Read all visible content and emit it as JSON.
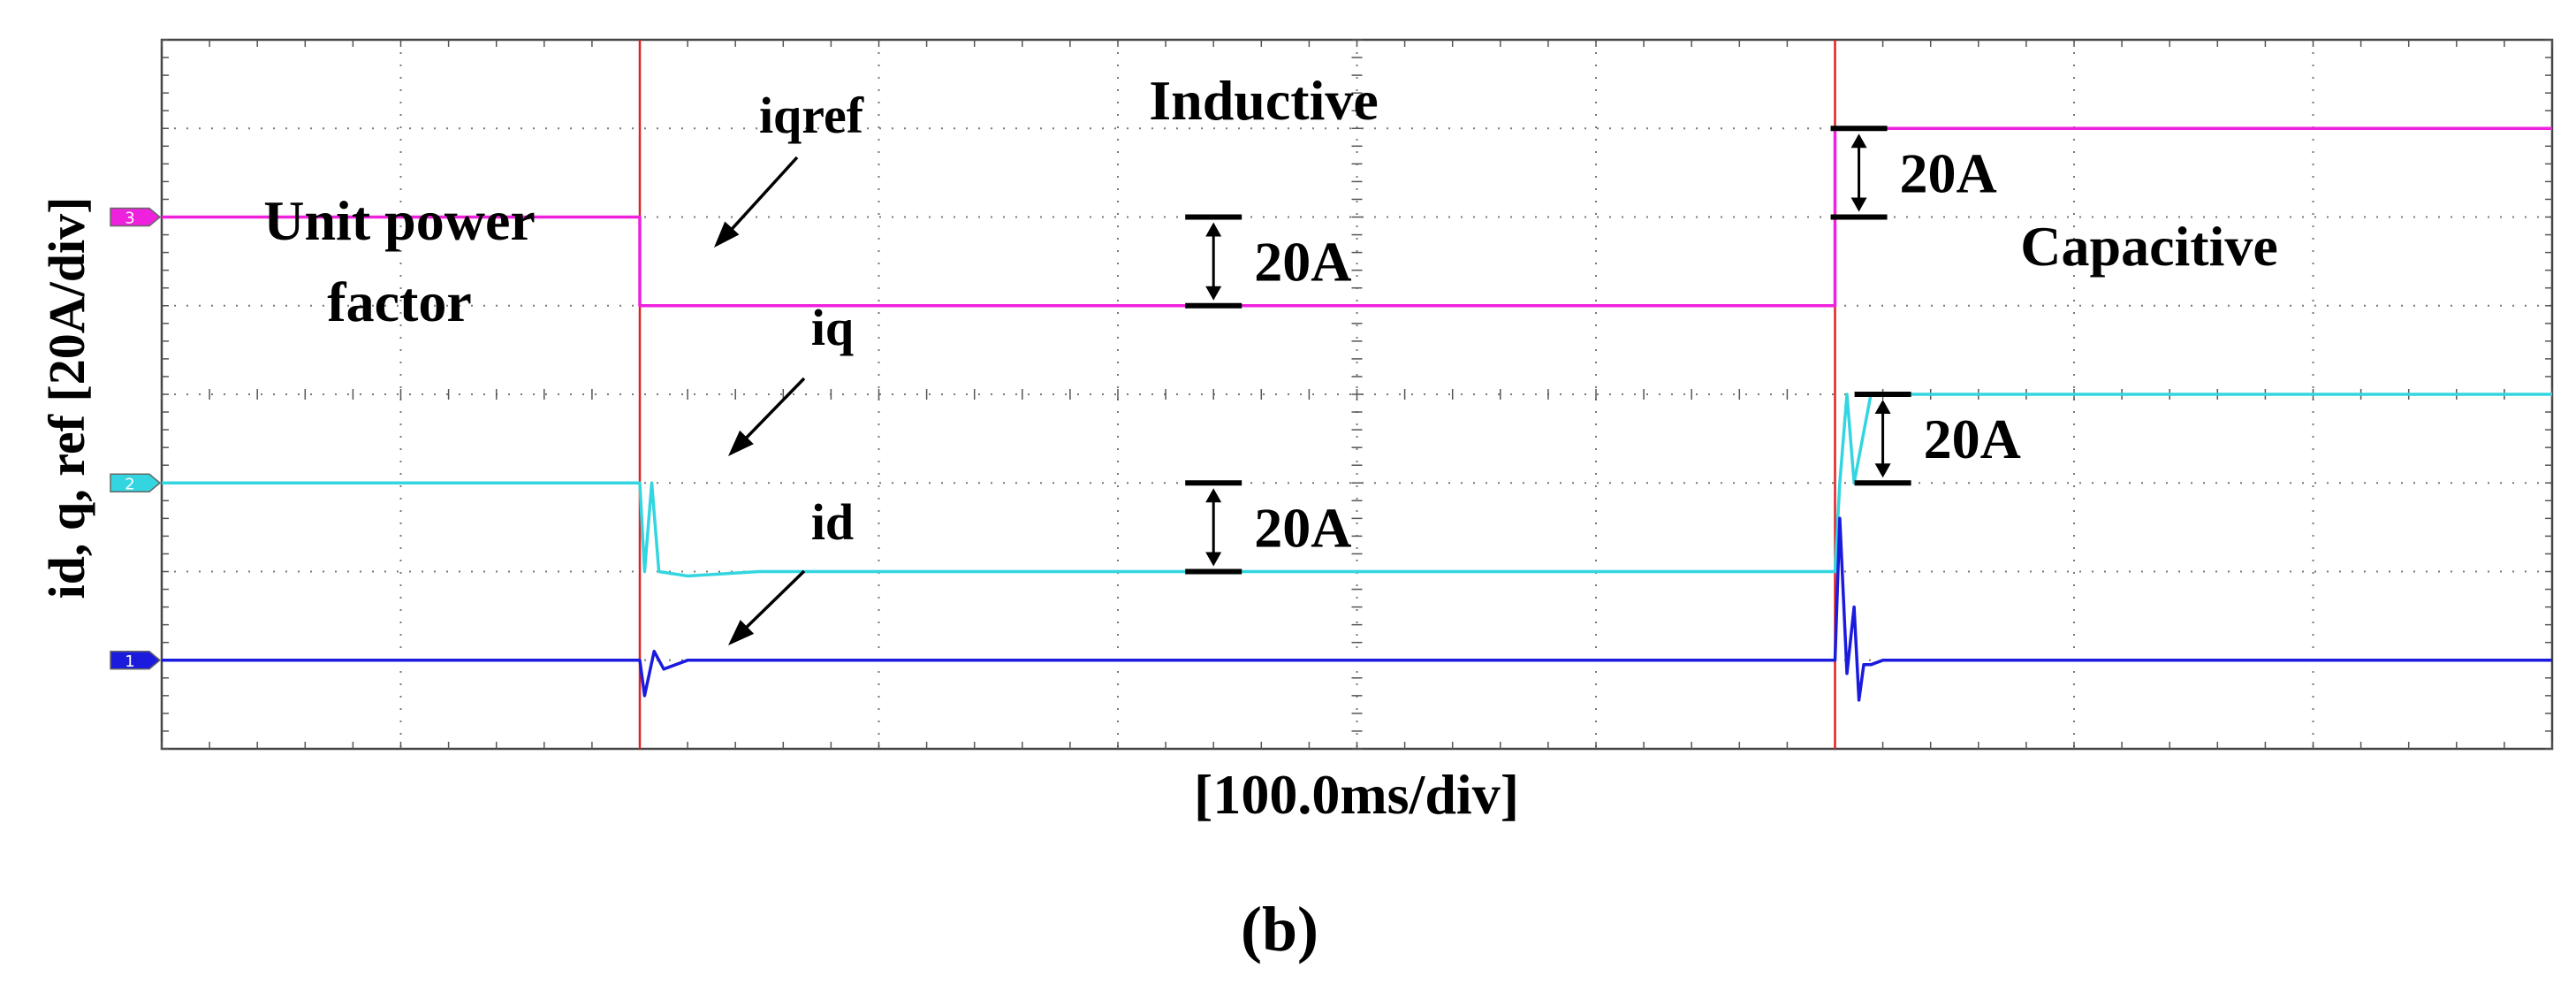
{
  "figure": {
    "label": "(b)"
  },
  "chart_data": {
    "type": "line",
    "title": "",
    "xlabel": "[100.0ms/div]",
    "ylabel": "id, q, ref [20A/div]",
    "grid": true,
    "x_divisions": 10,
    "y_divisions": 8,
    "x_unit": "div",
    "y_unit": "A",
    "xlim": [
      0,
      10
    ],
    "ylim": [
      -20,
      140
    ],
    "grid_style": "dotted",
    "step_times": [
      2.0,
      7.0
    ],
    "regions": [
      {
        "label": "Unit power\nfactor",
        "from": 0,
        "to": 2.0
      },
      {
        "label": "Inductive",
        "from": 2.0,
        "to": 7.0
      },
      {
        "label": "Capacitive",
        "from": 7.0,
        "to": 10.0
      }
    ],
    "series": [
      {
        "name": "iqref",
        "channel": "3",
        "color": "#ee22dd",
        "x": [
          0,
          2.0,
          2.0,
          7.0,
          7.0,
          10.0
        ],
        "y": [
          100,
          100,
          80,
          80,
          120,
          120
        ]
      },
      {
        "name": "iq",
        "channel": "2",
        "color": "#33d6e0",
        "x": [
          0,
          2.0,
          2.02,
          2.05,
          2.08,
          2.2,
          2.5,
          7.0,
          7.02,
          7.05,
          7.08,
          7.15,
          7.3,
          10.0
        ],
        "y": [
          40,
          40,
          20,
          40,
          20,
          19,
          20,
          20,
          40,
          60,
          40,
          60,
          60,
          60
        ]
      },
      {
        "name": "id",
        "channel": "1",
        "color": "#1b1bdd",
        "x": [
          0,
          2.0,
          2.02,
          2.06,
          2.1,
          2.2,
          2.3,
          7.0,
          7.02,
          7.05,
          7.08,
          7.1,
          7.12,
          7.15,
          7.2,
          10.0
        ],
        "y": [
          0,
          0,
          -8,
          2,
          -2,
          0,
          0,
          0,
          32,
          -3,
          12,
          -9,
          -1,
          -1,
          0,
          0
        ]
      }
    ],
    "annotations": [
      {
        "text": "20A",
        "type": "scale_marker",
        "x": 4.4,
        "y_range": [
          80,
          100
        ]
      },
      {
        "text": "20A",
        "type": "scale_marker",
        "x": 4.4,
        "y_range": [
          20,
          40
        ]
      },
      {
        "text": "20A",
        "type": "scale_marker",
        "x": 7.1,
        "y_range": [
          100,
          120
        ]
      },
      {
        "text": "20A",
        "type": "scale_marker",
        "x": 7.2,
        "y_range": [
          40,
          60
        ]
      },
      {
        "text": "iqref",
        "type": "arrow_label",
        "series": "iqref"
      },
      {
        "text": "iq",
        "type": "arrow_label",
        "series": "iq"
      },
      {
        "text": "id",
        "type": "arrow_label",
        "series": "id"
      }
    ],
    "trigger_line_color": "#dd2222"
  }
}
